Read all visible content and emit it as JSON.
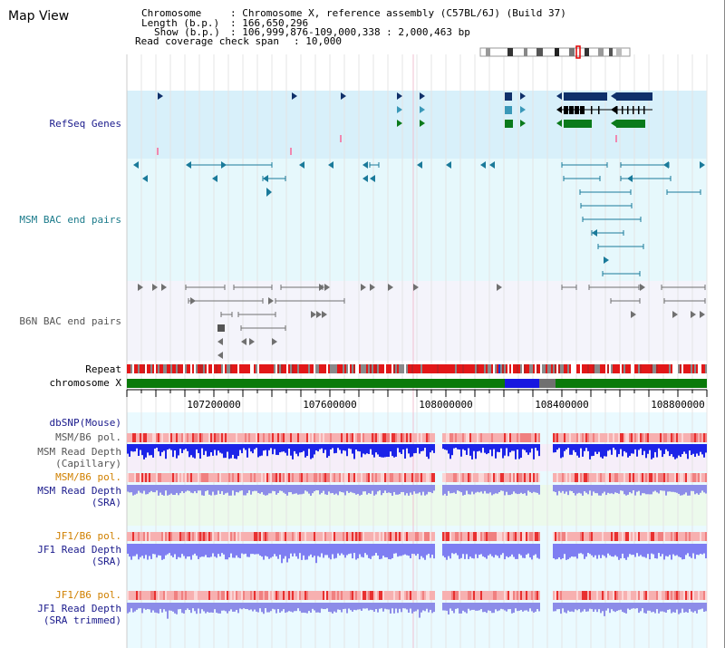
{
  "page": {
    "title": "Map View"
  },
  "info": {
    "chromosome_key": "Chromosome",
    "chromosome_val": ": Chromosome X, reference assembly (C57BL/6J) (Build 37)",
    "length_key": "Length (b.p.)",
    "length_val": ": 166,650,296",
    "show_key": "Show (b.p.)",
    "show_val": ": 106,999,876-109,000,338 : 2,000,463 bp",
    "read_span_key": "Read coverage check span",
    "read_span_val": ": 10,000"
  },
  "tracks": {
    "refseq_label": "RefSeq Genes",
    "msm_bac_label": "MSM BAC end pairs",
    "b6n_bac_label": "B6N BAC end pairs",
    "repeat_label": "Repeat",
    "chromosome_label": "chromosome X",
    "dbsnp_label": "dbSNP(Mouse)",
    "msm_b6_pol_label_1": "MSM/B6 pol.",
    "msm_depth_cap_label_1": "MSM Read Depth",
    "msm_depth_cap_label_2": "(Capillary)",
    "msm_b6_pol_label_2": "MSM/B6 pol.",
    "msm_depth_sra_label_1": "MSM Read Depth",
    "msm_depth_sra_label_2": "(SRA)",
    "jf1_b6_pol_label_1": "JF1/B6 pol.",
    "jf1_depth_sra_label_1": "JF1 Read Depth",
    "jf1_depth_sra_label_2": "(SRA)",
    "jf1_b6_pol_label_2": "JF1/B6 pol.",
    "jf1_depth_trim_label_1": "JF1 Read Depth",
    "jf1_depth_trim_label_2": "(SRA trimmed)"
  },
  "axis": {
    "ticks": [
      "107200000",
      "107600000",
      "108000000",
      "108400000",
      "108800000"
    ]
  },
  "colors": {
    "refseq_label": "#1a1a8c",
    "msm_bac_label": "#1a7a8a",
    "b6n_bac_label": "#555555",
    "dbsnp_label": "#1a1a8c",
    "msm_pol_label": "#555555",
    "msm_pol_label_2": "#d08000",
    "jf1_pol_label": "#d08000",
    "depth_label": "#1a1a8c"
  }
}
